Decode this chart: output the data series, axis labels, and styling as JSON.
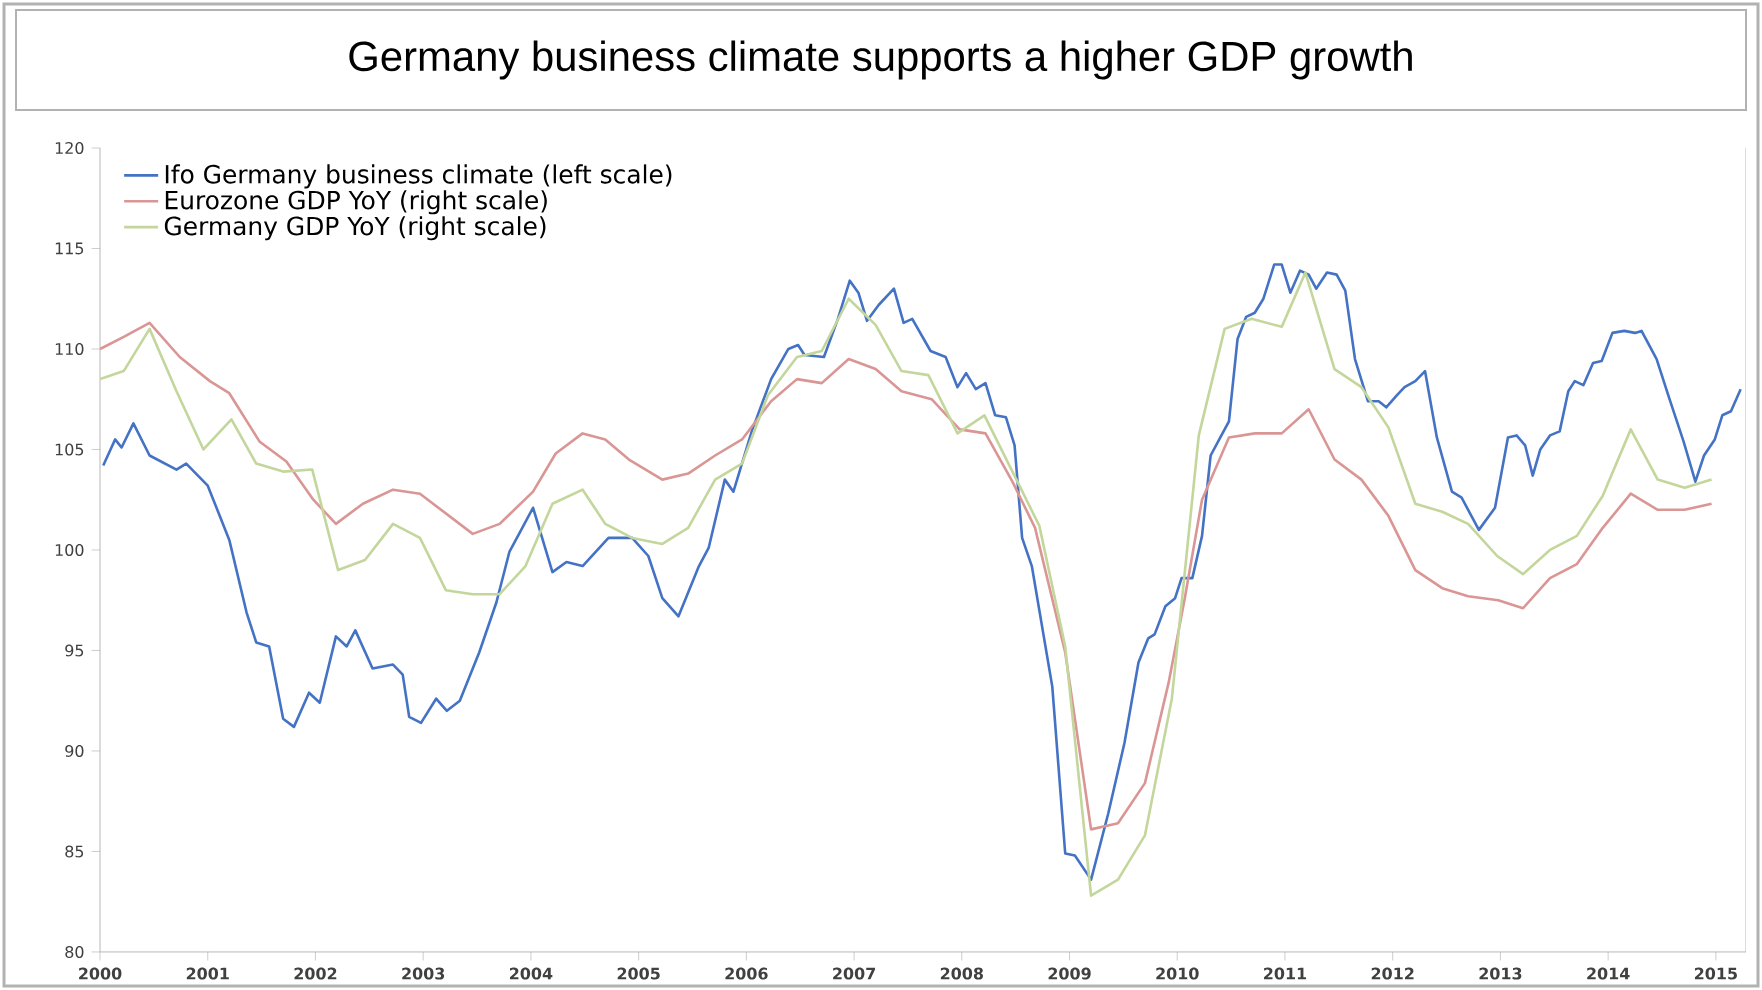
{
  "chart_data": {
    "type": "line",
    "title": "Germany business climate supports a higher GDP growth",
    "xlim": [
      2000,
      2015.28
    ],
    "xticks": [
      2000,
      2001,
      2002,
      2003,
      2004,
      2005,
      2006,
      2007,
      2008,
      2009,
      2010,
      2011,
      2012,
      2013,
      2014,
      2015
    ],
    "ylim": [
      80,
      120
    ],
    "yticks": [
      80,
      85,
      90,
      95,
      100,
      105,
      110,
      115,
      120
    ],
    "legend": "top left",
    "marker": "none",
    "line_style": "solid",
    "series": [
      {
        "name": "Ifo Germany business climate (left scale)",
        "color": "#4472c4",
        "x": [
          2000.03,
          2000.14,
          2000.2,
          2000.31,
          2000.46,
          2000.71,
          2000.8,
          2001.0,
          2001.2,
          2001.36,
          2001.45,
          2001.57,
          2001.7,
          2001.8,
          2001.94,
          2002.04,
          2002.19,
          2002.29,
          2002.37,
          2002.53,
          2002.72,
          2002.81,
          2002.87,
          2002.98,
          2003.12,
          2003.22,
          2003.34,
          2003.52,
          2003.68,
          2003.8,
          2003.9,
          2004.02,
          2004.2,
          2004.33,
          2004.48,
          2004.72,
          2004.94,
          2005.09,
          2005.22,
          2005.37,
          2005.56,
          2005.65,
          2005.8,
          2005.88,
          2006.05,
          2006.23,
          2006.39,
          2006.48,
          2006.54,
          2006.72,
          2006.85,
          2006.96,
          2007.04,
          2007.12,
          2007.23,
          2007.37,
          2007.46,
          2007.54,
          2007.71,
          2007.85,
          2007.96,
          2008.04,
          2008.13,
          2008.22,
          2008.31,
          2008.41,
          2008.49,
          2008.56,
          2008.65,
          2008.84,
          2008.96,
          2009.05,
          2009.2,
          2009.36,
          2009.51,
          2009.64,
          2009.73,
          2009.79,
          2009.89,
          2009.98,
          2010.04,
          2010.14,
          2010.23,
          2010.31,
          2010.39,
          2010.48,
          2010.56,
          2010.64,
          2010.72,
          2010.8,
          2010.9,
          2010.97,
          2011.05,
          2011.14,
          2011.22,
          2011.29,
          2011.39,
          2011.48,
          2011.56,
          2011.65,
          2011.77,
          2011.87,
          2011.94,
          2012.04,
          2012.11,
          2012.21,
          2012.3,
          2012.41,
          2012.55,
          2012.64,
          2012.8,
          2012.95,
          2013.07,
          2013.15,
          2013.23,
          2013.3,
          2013.37,
          2013.46,
          2013.55,
          2013.63,
          2013.69,
          2013.77,
          2013.86,
          2013.94,
          2014.04,
          2014.15,
          2014.25,
          2014.31,
          2014.45,
          2014.57,
          2014.7,
          2014.81,
          2014.89,
          2014.99,
          2015.06,
          2015.14,
          2015.23
        ],
        "values": [
          104.2,
          105.5,
          105.1,
          106.3,
          104.7,
          104.0,
          104.3,
          103.2,
          100.5,
          96.9,
          95.4,
          95.2,
          91.6,
          91.2,
          92.9,
          92.4,
          95.7,
          95.2,
          96.0,
          94.1,
          94.3,
          93.8,
          91.7,
          91.4,
          92.6,
          92.0,
          92.5,
          94.9,
          97.4,
          99.9,
          100.9,
          102.1,
          98.9,
          99.4,
          99.2,
          100.6,
          100.6,
          99.7,
          97.6,
          96.7,
          99.2,
          100.1,
          103.5,
          102.9,
          105.9,
          108.5,
          110.0,
          110.2,
          109.7,
          109.6,
          111.5,
          113.4,
          112.8,
          111.4,
          112.2,
          113.0,
          111.3,
          111.5,
          109.9,
          109.6,
          108.1,
          108.8,
          108.0,
          108.3,
          106.7,
          106.6,
          105.2,
          100.6,
          99.2,
          93.2,
          84.9,
          84.8,
          83.6,
          86.9,
          90.4,
          94.4,
          95.6,
          95.8,
          97.2,
          97.6,
          98.6,
          98.6,
          100.7,
          104.7,
          105.5,
          106.4,
          110.5,
          111.6,
          111.8,
          112.5,
          114.2,
          114.2,
          112.8,
          113.9,
          113.7,
          113.0,
          113.8,
          113.7,
          112.9,
          109.5,
          107.4,
          107.4,
          107.1,
          107.7,
          108.1,
          108.4,
          108.9,
          105.6,
          102.9,
          102.6,
          101.0,
          102.1,
          105.6,
          105.7,
          105.2,
          103.7,
          105.0,
          105.7,
          105.9,
          107.9,
          108.4,
          108.2,
          109.3,
          109.4,
          110.8,
          110.9,
          110.8,
          110.9,
          109.5,
          107.5,
          105.4,
          103.4,
          104.7,
          105.5,
          106.7,
          106.9,
          108.0
        ]
      },
      {
        "name": "Eurozone GDP YoY (right scale)",
        "color": "#d99694",
        "x": [
          2000.0,
          2000.22,
          2000.46,
          2000.74,
          2001.02,
          2001.2,
          2001.48,
          2001.73,
          2001.98,
          2002.19,
          2002.44,
          2002.72,
          2002.97,
          2003.46,
          2003.71,
          2004.02,
          2004.23,
          2004.48,
          2004.69,
          2004.91,
          2005.22,
          2005.46,
          2005.71,
          2005.96,
          2006.23,
          2006.47,
          2006.7,
          2006.95,
          2007.2,
          2007.44,
          2007.72,
          2007.98,
          2008.22,
          2008.47,
          2008.68,
          2008.96,
          2009.2,
          2009.45,
          2009.7,
          2009.92,
          2010.07,
          2010.23,
          2010.48,
          2010.72,
          2010.97,
          2011.22,
          2011.46,
          2011.71,
          2011.96,
          2012.21,
          2012.46,
          2012.7,
          2012.98,
          2013.21,
          2013.46,
          2013.71,
          2013.95,
          2014.21,
          2014.46,
          2014.71,
          2014.96
        ],
        "values": [
          110.0,
          110.6,
          111.3,
          109.6,
          108.4,
          107.8,
          105.4,
          104.4,
          102.5,
          101.3,
          102.3,
          103.0,
          102.8,
          100.8,
          101.3,
          102.9,
          104.8,
          105.8,
          105.5,
          104.5,
          103.5,
          103.8,
          104.7,
          105.5,
          107.4,
          108.5,
          108.3,
          109.5,
          109.0,
          107.9,
          107.5,
          106.0,
          105.8,
          103.4,
          101.1,
          94.9,
          86.1,
          86.4,
          88.4,
          93.4,
          97.6,
          102.5,
          105.6,
          105.8,
          105.8,
          107.0,
          104.5,
          103.5,
          101.7,
          99.0,
          98.1,
          97.7,
          97.5,
          97.1,
          98.6,
          99.3,
          101.1,
          102.8,
          102.0,
          102.0,
          102.3
        ]
      },
      {
        "name": "Germany GDP YoY (right scale)",
        "color": "#c3d69b",
        "x": [
          2000.0,
          2000.22,
          2000.46,
          2000.71,
          2000.96,
          2001.22,
          2001.45,
          2001.7,
          2001.97,
          2002.21,
          2002.46,
          2002.72,
          2002.97,
          2003.21,
          2003.46,
          2003.71,
          2003.95,
          2004.2,
          2004.48,
          2004.69,
          2004.94,
          2005.22,
          2005.46,
          2005.71,
          2005.96,
          2006.2,
          2006.47,
          2006.7,
          2006.95,
          2007.2,
          2007.44,
          2007.69,
          2007.96,
          2008.21,
          2008.47,
          2008.72,
          2008.96,
          2009.2,
          2009.45,
          2009.7,
          2009.95,
          2010.2,
          2010.44,
          2010.69,
          2010.97,
          2011.19,
          2011.46,
          2011.71,
          2011.96,
          2012.21,
          2012.46,
          2012.7,
          2012.97,
          2013.21,
          2013.46,
          2013.71,
          2013.95,
          2014.21,
          2014.46,
          2014.71,
          2014.96
        ],
        "values": [
          108.5,
          108.9,
          111.0,
          107.9,
          105.0,
          106.5,
          104.3,
          103.9,
          104.0,
          99.0,
          99.5,
          101.3,
          100.6,
          98.0,
          97.8,
          97.8,
          99.2,
          102.3,
          103.0,
          101.3,
          100.6,
          100.3,
          101.1,
          103.5,
          104.3,
          107.7,
          109.6,
          109.9,
          112.5,
          111.2,
          108.9,
          108.7,
          105.8,
          106.7,
          103.9,
          101.2,
          95.2,
          82.8,
          83.6,
          85.8,
          92.6,
          105.7,
          111.0,
          111.5,
          111.1,
          113.8,
          109.0,
          108.1,
          106.1,
          102.3,
          101.9,
          101.3,
          99.7,
          98.8,
          100.0,
          100.7,
          102.7,
          106.0,
          103.5,
          103.1,
          103.5
        ]
      }
    ]
  }
}
